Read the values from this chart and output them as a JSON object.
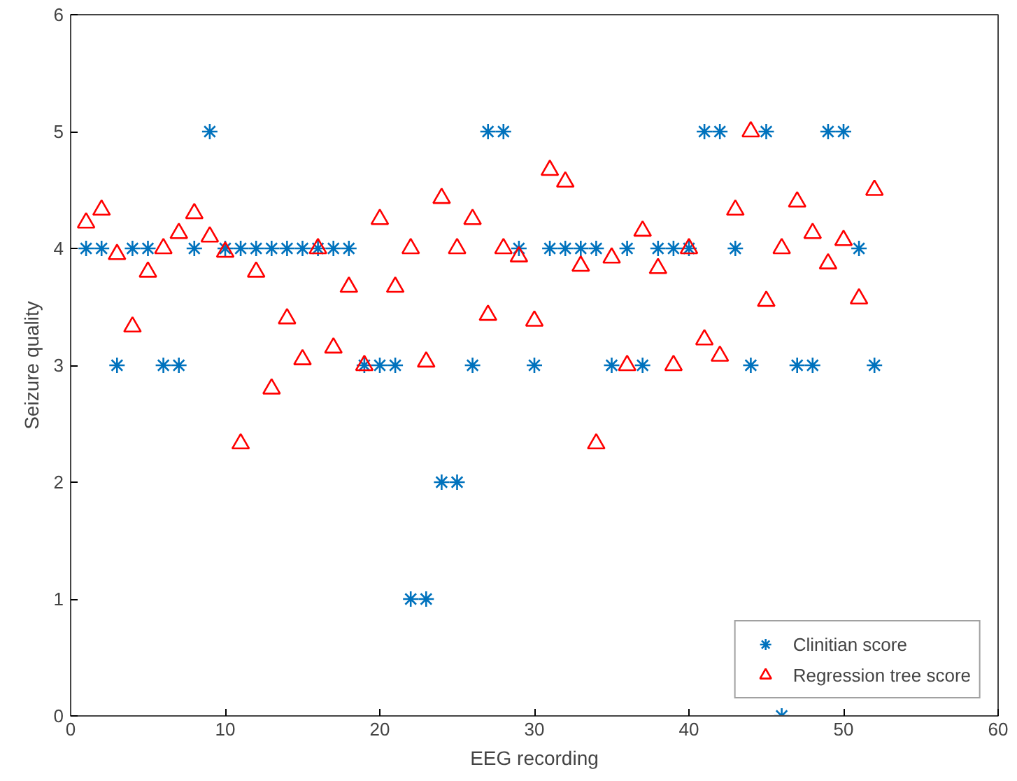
{
  "chart_data": {
    "type": "scatter",
    "xlabel": "EEG recording",
    "ylabel": "Seizure quality",
    "x": [
      1,
      2,
      3,
      4,
      5,
      6,
      7,
      8,
      9,
      10,
      11,
      12,
      13,
      14,
      15,
      16,
      17,
      18,
      19,
      20,
      21,
      22,
      23,
      24,
      25,
      26,
      27,
      28,
      29,
      30,
      31,
      32,
      33,
      34,
      35,
      36,
      37,
      38,
      39,
      40,
      41,
      42,
      43,
      44,
      45,
      46,
      47,
      48,
      49,
      50,
      51,
      52
    ],
    "series": [
      {
        "name": "Clinitian score",
        "color": "#0072bd",
        "marker": "cross",
        "values": [
          4,
          4,
          3,
          4,
          4,
          3,
          3,
          4,
          5,
          4,
          4,
          4,
          4,
          4,
          4,
          4,
          4,
          4,
          3,
          3,
          3,
          1,
          1,
          2,
          2,
          3,
          5,
          5,
          4,
          3,
          4,
          4,
          4,
          4,
          3,
          4,
          3,
          4,
          4,
          4,
          5,
          5,
          4,
          3,
          5,
          0,
          3,
          3,
          5,
          5,
          4,
          3
        ]
      },
      {
        "name": "Regression tree score",
        "color": "#ff0000",
        "marker": "triangle",
        "values": [
          4.22,
          4.33,
          3.95,
          3.33,
          3.8,
          4.0,
          4.13,
          4.3,
          4.1,
          3.97,
          2.33,
          3.8,
          2.8,
          3.4,
          3.05,
          4.0,
          3.15,
          3.67,
          3.0,
          4.25,
          3.67,
          4.0,
          3.03,
          4.43,
          4.0,
          4.25,
          3.43,
          4.0,
          3.93,
          3.38,
          4.67,
          4.57,
          3.85,
          2.33,
          3.92,
          3.0,
          4.15,
          3.83,
          3.0,
          4.0,
          3.22,
          3.08,
          4.33,
          5.0,
          3.55,
          4.0,
          4.4,
          4.13,
          3.87,
          4.07,
          3.57,
          4.5
        ]
      }
    ],
    "xlim": [
      0,
      60
    ],
    "xticks": [
      0,
      10,
      20,
      30,
      40,
      50,
      60
    ],
    "ylim": [
      0,
      6
    ],
    "yticks": [
      0,
      1,
      2,
      3,
      4,
      5,
      6
    ],
    "grid": false,
    "legend": "bottom right"
  }
}
